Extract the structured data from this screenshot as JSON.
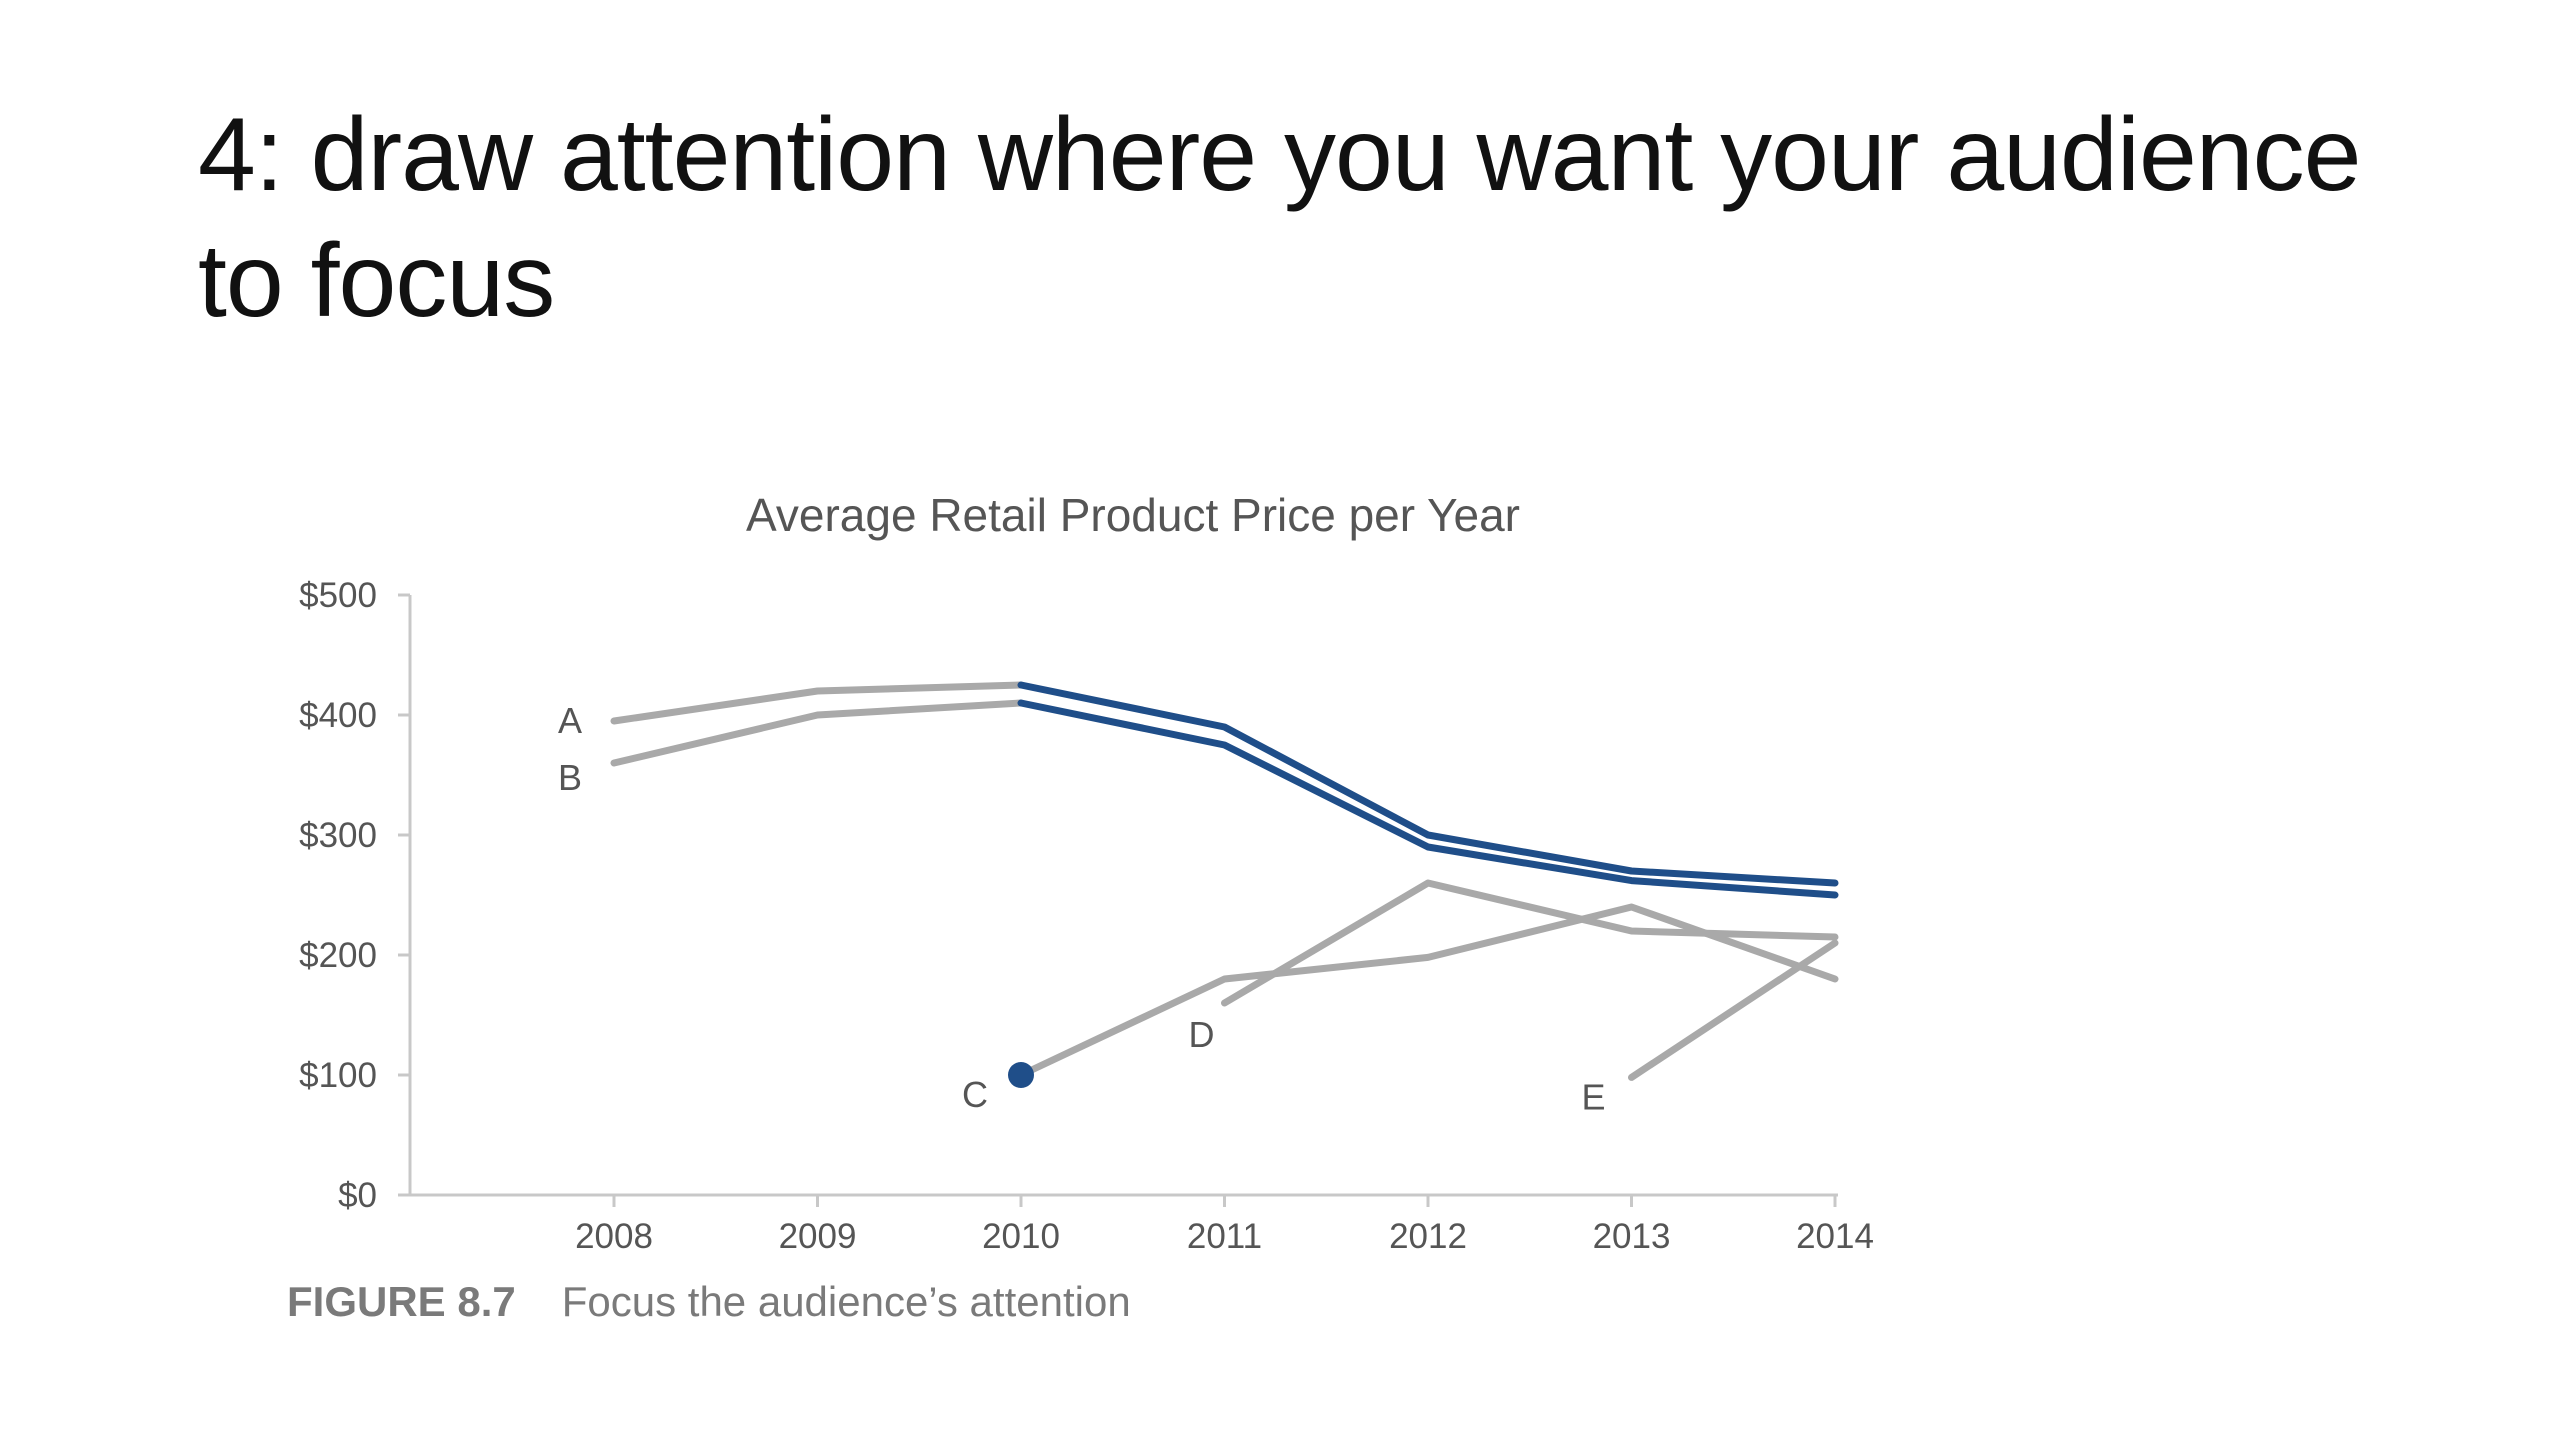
{
  "slide": {
    "title": "4: draw attention where you want your audience to focus"
  },
  "figure": {
    "number": "FIGURE 8.7",
    "caption": "Focus the audience’s attention"
  },
  "chart_data": {
    "type": "line",
    "title": "Average Retail Product Price per Year",
    "xlabel": "",
    "ylabel": "",
    "x": [
      2008,
      2009,
      2010,
      2011,
      2012,
      2013,
      2014
    ],
    "x_tick_labels": [
      "2008",
      "2009",
      "2010",
      "2011",
      "2012",
      "2013",
      "2014"
    ],
    "ylim": [
      0,
      500
    ],
    "y_ticks": [
      0,
      100,
      200,
      300,
      400,
      500
    ],
    "y_tick_labels": [
      "$0",
      "$100",
      "$200",
      "$300",
      "$400",
      "$500"
    ],
    "grid": false,
    "legend": "direct labels",
    "colors": {
      "highlight": "#1f4e89",
      "muted": "#a9a9a9",
      "axis": "#c8c8c8"
    },
    "series": [
      {
        "name": "A",
        "x": [
          2008,
          2009,
          2010,
          2011,
          2012,
          2013,
          2014
        ],
        "values": [
          395,
          420,
          425,
          390,
          300,
          270,
          260
        ],
        "highlight_from": 2010
      },
      {
        "name": "B",
        "x": [
          2008,
          2009,
          2010,
          2011,
          2012,
          2013,
          2014
        ],
        "values": [
          360,
          400,
          410,
          375,
          290,
          262,
          250
        ],
        "highlight_from": 2010
      },
      {
        "name": "C",
        "x": [
          2010,
          2011,
          2012,
          2013,
          2014
        ],
        "values": [
          100,
          180,
          198,
          240,
          180
        ],
        "highlight_point": 2010
      },
      {
        "name": "D",
        "x": [
          2011,
          2012,
          2013,
          2014
        ],
        "values": [
          160,
          260,
          220,
          215
        ]
      },
      {
        "name": "E",
        "x": [
          2013,
          2014
        ],
        "values": [
          98,
          210
        ]
      }
    ]
  }
}
